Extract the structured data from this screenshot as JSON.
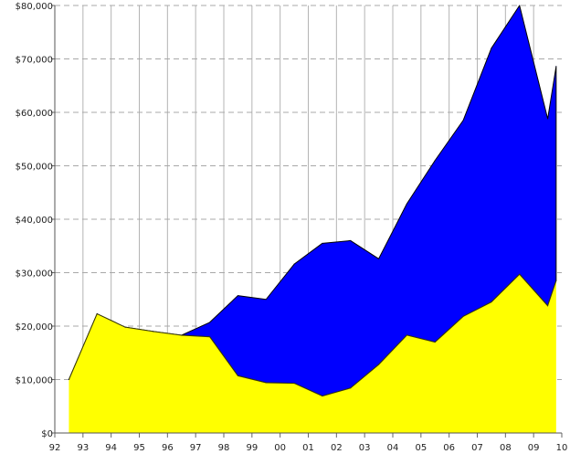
{
  "chart_data": {
    "type": "area",
    "stacked": true,
    "title": "",
    "xlabel": "",
    "ylabel": "",
    "x_tick_labels": [
      "92",
      "93",
      "94",
      "95",
      "96",
      "97",
      "98",
      "99",
      "00",
      "01",
      "02",
      "03",
      "04",
      "05",
      "06",
      "07",
      "08",
      "09",
      "10"
    ],
    "y_tick_labels": [
      "$0",
      "$10,000",
      "$20,000",
      "$30,000",
      "$40,000",
      "$50,000",
      "$60,000",
      "$70,000",
      "$80,000"
    ],
    "ylim": [
      0,
      80000
    ],
    "grid": true,
    "legend": "none",
    "x_positions": [
      92.5,
      93.5,
      94.5,
      95.5,
      96.5,
      97.5,
      98.5,
      99.5,
      100.5,
      101.5,
      102.5,
      103.5,
      104.5,
      105.5,
      106.5,
      107.5,
      108.5,
      109.5
    ],
    "series": [
      {
        "color": "#ffff00",
        "values": [
          10000,
          22300,
          19800,
          19000,
          18300,
          18000,
          10700,
          9400,
          9300,
          6900,
          8400,
          12800,
          18300,
          17000,
          21800,
          24500,
          29700,
          23800
        ]
      },
      {
        "color": "#0000ff",
        "values": [
          0,
          0,
          0,
          0,
          0,
          2700,
          15000,
          15600,
          22300,
          28600,
          27600,
          19800,
          24600,
          34000,
          36700,
          47500,
          50300,
          35000
        ]
      }
    ],
    "series_extra": {
      "x": 109.8,
      "totals": [
        28500,
        68600
      ]
    }
  }
}
